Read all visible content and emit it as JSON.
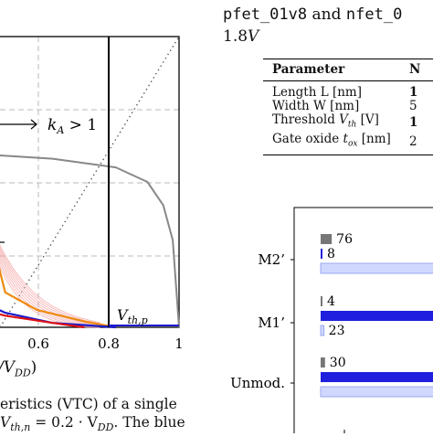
{
  "vtc_figure": {
    "chart_data": {
      "type": "line",
      "x_ticks": [
        "0.6",
        "0.8",
        "1"
      ],
      "xlabel_partial": "/V",
      "xlabel_sub": "DD",
      "xlabel_close": ")",
      "annotation_ka": "k",
      "annotation_ka_sub": "A",
      "annotation_ka_rest": " > 1",
      "annotation_vth": "V",
      "annotation_vth_sub": "th,p",
      "series": [
        {
          "color": "#ee8a10",
          "x": [
            0.0,
            0.05,
            0.2,
            0.35,
            0.38,
            0.4,
            0.42,
            0.45,
            0.55,
            0.7,
            0.8
          ],
          "y": [
            1.0,
            1.0,
            0.99,
            0.97,
            0.95,
            0.85,
            0.25,
            0.12,
            0.06,
            0.02,
            0.0
          ]
        },
        {
          "color": "#1a1acc",
          "x": [
            0.0,
            0.05,
            0.15,
            0.25,
            0.28,
            0.3,
            0.32,
            0.35,
            0.45,
            0.6,
            0.8
          ],
          "y": [
            1.0,
            1.0,
            0.99,
            0.97,
            0.9,
            0.55,
            0.2,
            0.1,
            0.05,
            0.015,
            0.0
          ]
        },
        {
          "color": "#888888",
          "x": [
            0.0,
            0.3,
            0.6,
            0.8,
            0.9,
            0.95,
            0.98,
            1.0
          ],
          "y": [
            0.6,
            0.6,
            0.58,
            0.55,
            0.5,
            0.42,
            0.3,
            0.0
          ]
        },
        {
          "color": "#dd1111",
          "x": [
            0.0,
            0.1,
            0.2,
            0.3,
            0.45,
            0.6,
            0.7
          ],
          "y": [
            0.32,
            0.22,
            0.14,
            0.08,
            0.04,
            0.015,
            0.0
          ]
        }
      ],
      "identity_line": true,
      "vertical_line_x": 0.8,
      "ylim": [
        0,
        1
      ],
      "xlim": [
        0,
        1
      ]
    },
    "caption_lines": [
      {
        "pre": "eristics (VTC) of a single",
        "math": "",
        "post": ""
      },
      {
        "pre": "",
        "math": "V",
        "sub": "th,n",
        "post": " = 0.2 · V",
        "sub2": "DD",
        "tail": ". The blue"
      }
    ]
  },
  "right_text": {
    "line1_mono_a": "pfet_01v8",
    "line1_and": " and ",
    "line1_mono_b": "nfet_0",
    "line2": "1.8",
    "line2_italic": "V"
  },
  "param_table": {
    "headers": [
      "Parameter",
      "N"
    ],
    "rows": [
      {
        "label": "Length L [nm]",
        "value": "1"
      },
      {
        "label": "Width W [nm]",
        "value": "5"
      },
      {
        "label_pre": "Threshold ",
        "label_math": "V",
        "label_sub": "th",
        "label_post": " [V]",
        "value": "1"
      },
      {
        "label_pre": "Gate oxide ",
        "label_math": "t",
        "label_sub": "ox",
        "label_post": " [nm]",
        "value": "2"
      }
    ]
  },
  "bar_chart": {
    "chart_data": {
      "type": "bar",
      "categories": [
        "M2’",
        "M1’",
        "Unmod."
      ],
      "series_colors": [
        "#777777",
        "#1f1fdd",
        "#d0d8ff"
      ],
      "groups": [
        {
          "category": "M2’",
          "values": [
            76,
            8,
            null
          ],
          "labels": [
            "76",
            "8",
            ""
          ]
        },
        {
          "category": "M1’",
          "values": [
            4,
            null,
            23
          ],
          "labels": [
            "4",
            "",
            "23"
          ]
        },
        {
          "category": "Unmod.",
          "values": [
            30,
            null,
            null
          ],
          "labels": [
            "30",
            "",
            ""
          ]
        }
      ]
    }
  }
}
